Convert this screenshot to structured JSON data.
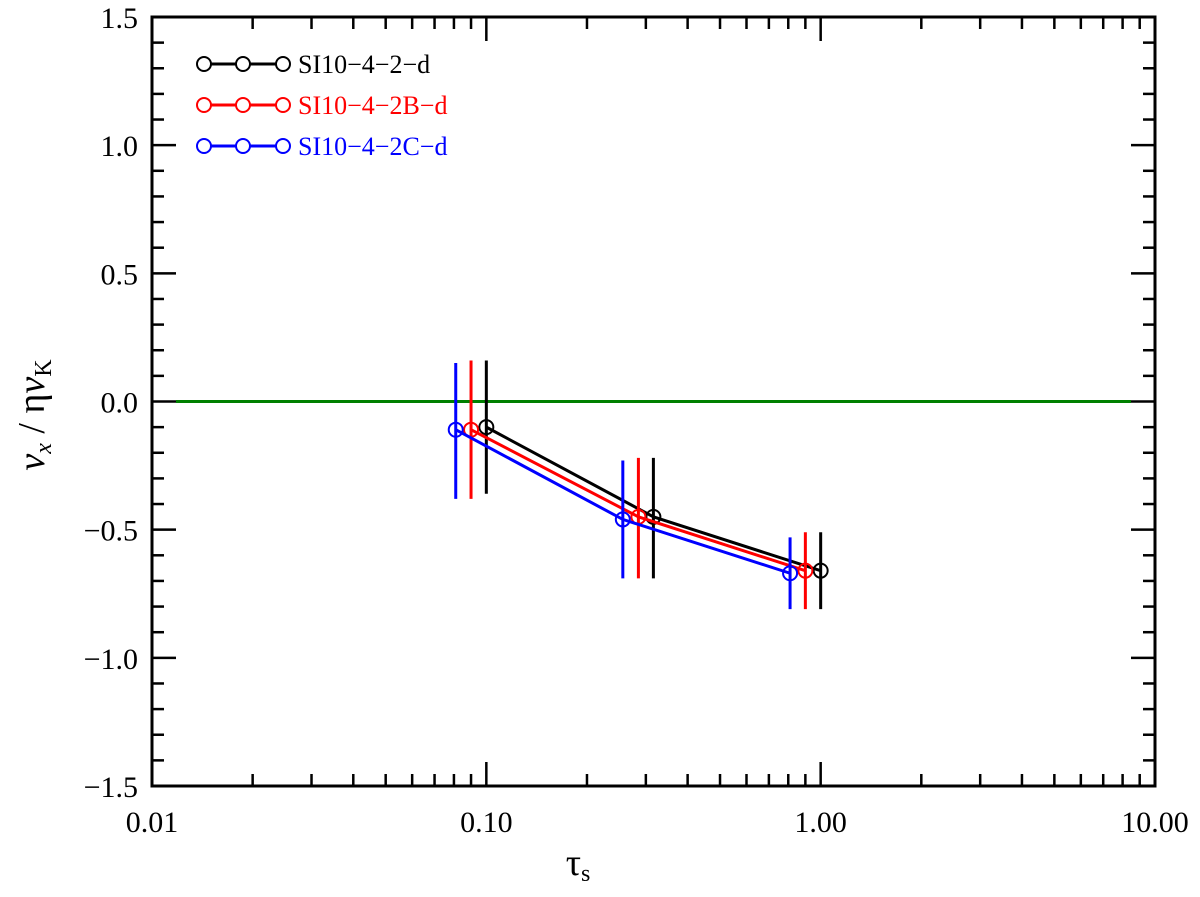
{
  "chart_data": {
    "type": "line",
    "xscale": "log",
    "xlim": [
      0.01,
      10.0
    ],
    "ylim": [
      -1.5,
      1.5
    ],
    "x_ticks": [
      {
        "value": 0.01,
        "label": "0.01"
      },
      {
        "value": 0.1,
        "label": "0.10"
      },
      {
        "value": 1.0,
        "label": "1.00"
      },
      {
        "value": 10.0,
        "label": "10.00"
      }
    ],
    "y_ticks": [
      {
        "value": 1.5,
        "label": "1.5"
      },
      {
        "value": 1.0,
        "label": "1.0"
      },
      {
        "value": 0.5,
        "label": "0.5"
      },
      {
        "value": 0.0,
        "label": "0.0"
      },
      {
        "value": -0.5,
        "label": "−0.5"
      },
      {
        "value": -1.0,
        "label": "−1.0"
      },
      {
        "value": -1.5,
        "label": "−1.5"
      }
    ],
    "xlabel": {
      "main": "τ",
      "sub": "s"
    },
    "ylabel": {
      "v": "v",
      "v_sub": "x",
      "sep": " / η",
      "v2": "v",
      "v2_sub": "K"
    },
    "reference_line": {
      "y": 0.0,
      "color": "#008000"
    },
    "legend_position": "top-left",
    "marker": "open-circle",
    "series": [
      {
        "name": "SI10−4−2−d",
        "color": "#000000",
        "points": [
          {
            "x": 0.1,
            "y": -0.1,
            "err_low": -0.36,
            "err_high": 0.16
          },
          {
            "x": 0.316,
            "y": -0.45,
            "err_low": -0.69,
            "err_high": -0.22
          },
          {
            "x": 1.0,
            "y": -0.66,
            "err_low": -0.81,
            "err_high": -0.51
          }
        ]
      },
      {
        "name": "SI10−4−2B−d",
        "color": "#ff0000",
        "points": [
          {
            "x": 0.09,
            "y": -0.11,
            "err_low": -0.38,
            "err_high": 0.16
          },
          {
            "x": 0.285,
            "y": -0.45,
            "err_low": -0.69,
            "err_high": -0.22
          },
          {
            "x": 0.9,
            "y": -0.66,
            "err_low": -0.81,
            "err_high": -0.51
          }
        ]
      },
      {
        "name": "SI10−4−2C−d",
        "color": "#0000ff",
        "points": [
          {
            "x": 0.081,
            "y": -0.11,
            "err_low": -0.38,
            "err_high": 0.15
          },
          {
            "x": 0.256,
            "y": -0.46,
            "err_low": -0.69,
            "err_high": -0.23
          },
          {
            "x": 0.81,
            "y": -0.67,
            "err_low": -0.81,
            "err_high": -0.53
          }
        ]
      }
    ]
  }
}
